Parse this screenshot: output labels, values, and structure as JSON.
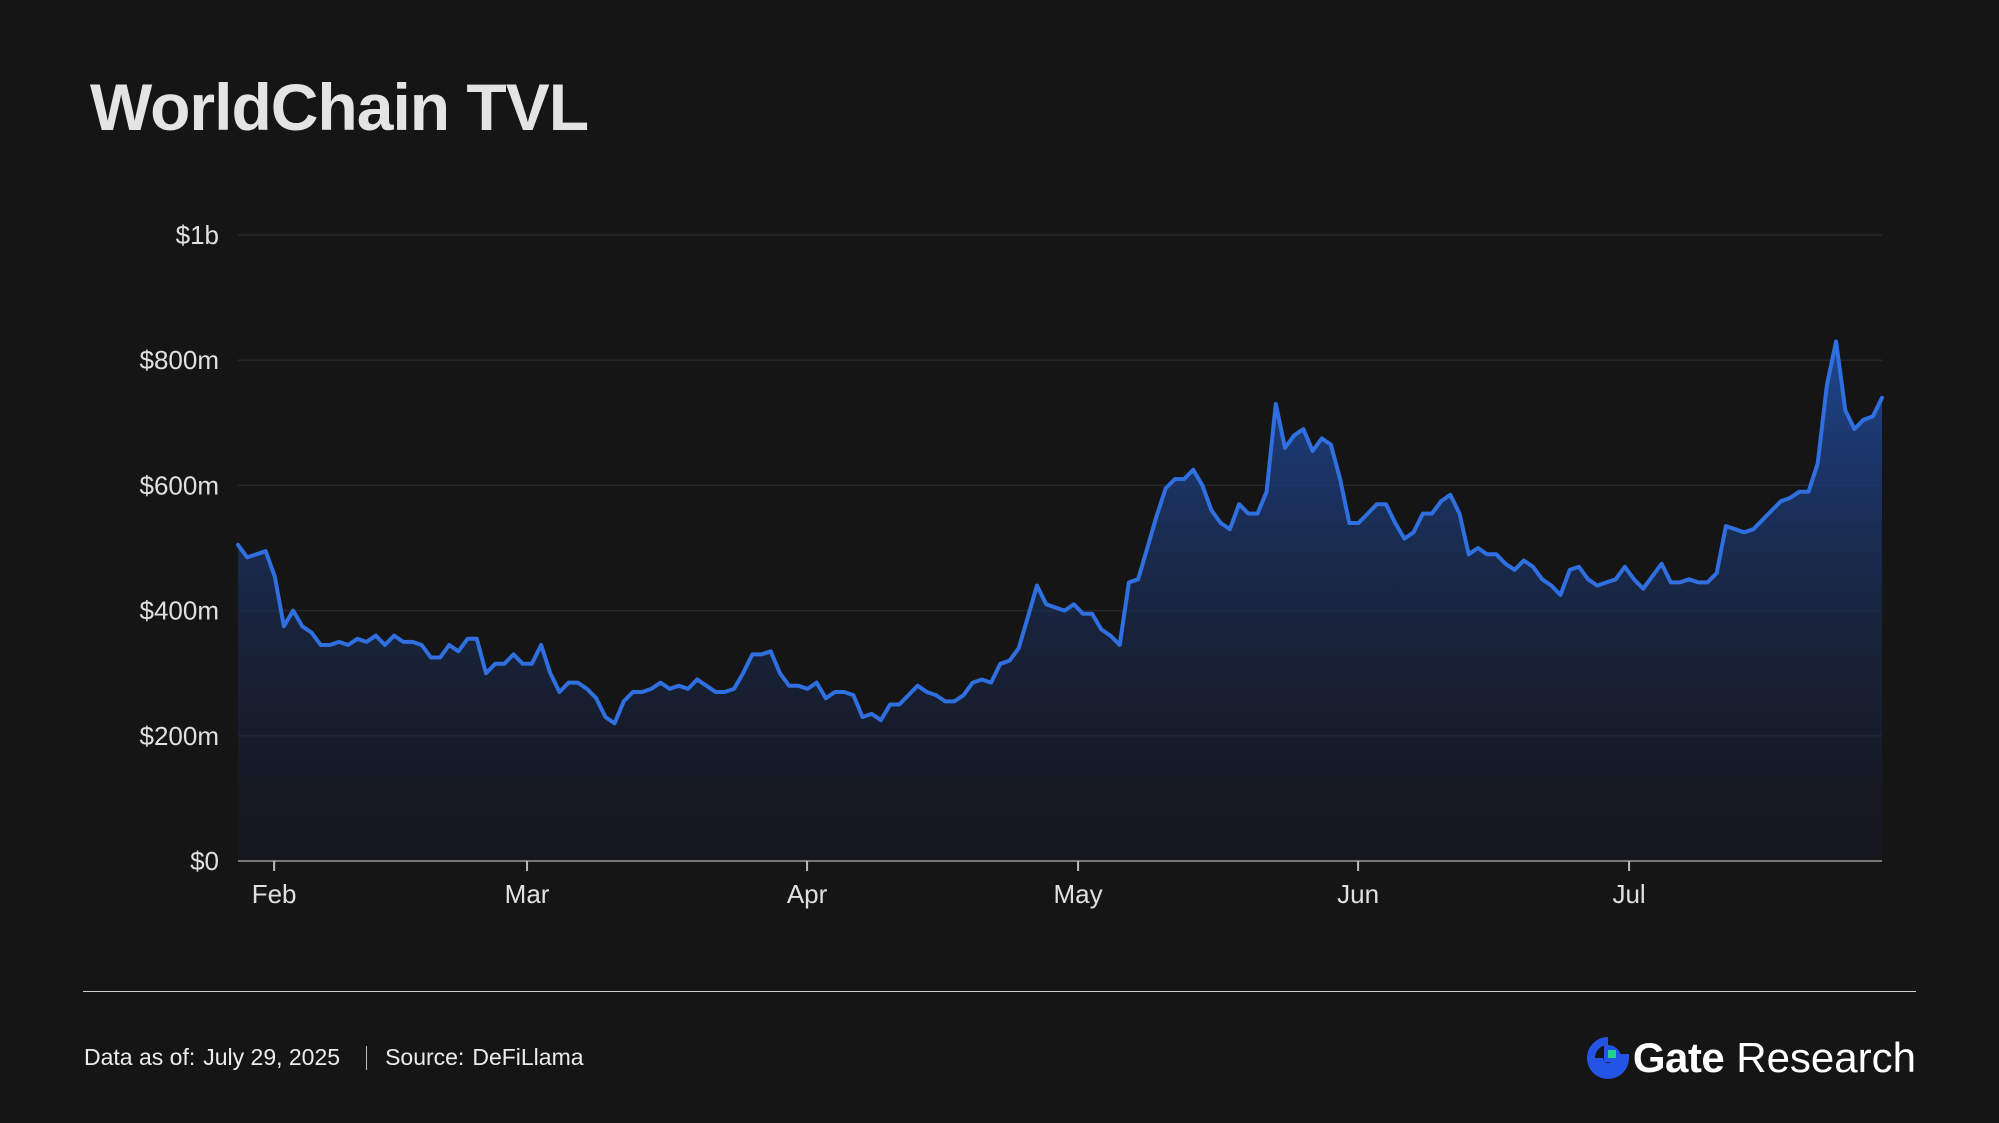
{
  "header": {
    "title": "WorldChain TVL"
  },
  "footer": {
    "date_label": "Data as of:",
    "date_value": "July 29, 2025",
    "source_label": "Source:",
    "source_value": "DeFiLlama",
    "brand_name": "Gate",
    "brand_suffix": "Research"
  },
  "colors": {
    "background": "#151516",
    "line": "#2f6fe0",
    "area_top": "#1f4fa8",
    "grid": "#26272b",
    "text": "#e6e6e6",
    "brand_blue": "#2354e6",
    "brand_green": "#22d38f"
  },
  "chart_data": {
    "type": "area",
    "title": "WorldChain TVL",
    "xlabel": "",
    "ylabel": "",
    "y_unit": "USD",
    "ylim": [
      0,
      1000000000
    ],
    "y_ticks": [
      {
        "value": 0,
        "label": "$0"
      },
      {
        "value": 200000000,
        "label": "$200m"
      },
      {
        "value": 400000000,
        "label": "$400m"
      },
      {
        "value": 600000000,
        "label": "$600m"
      },
      {
        "value": 800000000,
        "label": "$800m"
      },
      {
        "value": 1000000000,
        "label": "$1b"
      }
    ],
    "xlim": [
      "2025-01-28",
      "2025-07-29"
    ],
    "x_ticks": [
      {
        "date": "2025-02-01",
        "label": "Feb"
      },
      {
        "date": "2025-03-01",
        "label": "Mar"
      },
      {
        "date": "2025-04-01",
        "label": "Apr"
      },
      {
        "date": "2025-05-01",
        "label": "May"
      },
      {
        "date": "2025-06-01",
        "label": "Jun"
      },
      {
        "date": "2025-07-01",
        "label": "Jul"
      }
    ],
    "grid": true,
    "series": [
      {
        "values_millions_usd": [
          505,
          485,
          490,
          495,
          455,
          375,
          400,
          375,
          365,
          345,
          345,
          350,
          345,
          355,
          350,
          360,
          345,
          360,
          350,
          350,
          345,
          325,
          325,
          345,
          335,
          355,
          355,
          300,
          315,
          315,
          330,
          315,
          315,
          345,
          300,
          270,
          285,
          285,
          275,
          260,
          230,
          220,
          255,
          270,
          270,
          275,
          285,
          275,
          280,
          275,
          290,
          280,
          270,
          270,
          275,
          300,
          330,
          330,
          335,
          300,
          280,
          280,
          275,
          285,
          260,
          270,
          270,
          265,
          230,
          235,
          225,
          250,
          250,
          265,
          280,
          270,
          265,
          255,
          255,
          265,
          285,
          290,
          285,
          315,
          320,
          340,
          390,
          440,
          410,
          405,
          400,
          410,
          395,
          395,
          370,
          360,
          345,
          445,
          450,
          500,
          550,
          595,
          610,
          610,
          625,
          600,
          560,
          540,
          530,
          570,
          555,
          555,
          590,
          730,
          660,
          680,
          690,
          655,
          675,
          665,
          610,
          540,
          540,
          555,
          570,
          570,
          540,
          515,
          525,
          555,
          555,
          575,
          585,
          555,
          490,
          500,
          490,
          490,
          475,
          465,
          480,
          470,
          450,
          440,
          425,
          465,
          470,
          450,
          440,
          445,
          450,
          470,
          450,
          435,
          455,
          475,
          445,
          445,
          450,
          445,
          445,
          460,
          535,
          530,
          525,
          530,
          545,
          560,
          575,
          580,
          590,
          590,
          635,
          760,
          830,
          720,
          690,
          705,
          710,
          740
        ]
      }
    ]
  }
}
